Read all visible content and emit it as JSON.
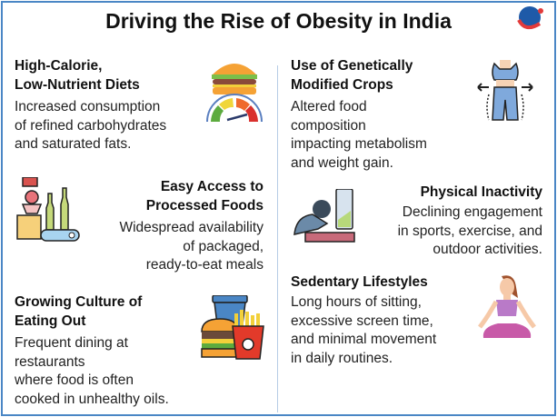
{
  "title": "Driving the Rise of Obesity in India",
  "sections": [
    {
      "heading_l1": "High-Calorie,",
      "heading_l2": "Low-Nutrient Diets",
      "body": [
        "Increased consumption",
        "of refined carbohydrates",
        "and saturated fats."
      ],
      "icon": "burger-calorie-meter-icon"
    },
    {
      "heading_l1": "Use of Genetically",
      "heading_l2": "Modified Crops",
      "body": [
        "Altered food",
        "composition",
        "impacting metabolism",
        "and weight gain."
      ],
      "icon": "waist-measure-icon"
    },
    {
      "heading_l1": "Easy Access to",
      "heading_l2": "Processed Foods",
      "body": [
        "Widespread availability",
        "of packaged,",
        "ready-to-eat meals"
      ],
      "icon": "food-factory-icon"
    },
    {
      "heading_l1": "Physical Inactivity",
      "body": [
        "Declining engagement",
        "in sports, exercise, and",
        "outdoor activities."
      ],
      "icon": "tired-person-battery-icon"
    },
    {
      "heading_l1": "Sedentary Lifestyles",
      "body": [
        "Long hours of sitting,",
        "excessive screen time,",
        "and minimal movement",
        "in daily routines."
      ],
      "icon": "meditation-icon"
    },
    {
      "heading_l1": "Growing Culture of",
      "heading_l2": "Eating Out",
      "body": [
        "Frequent dining at",
        "restaurants",
        "where food is often",
        "cooked in unhealthy oils."
      ],
      "icon": "fast-food-icon"
    }
  ]
}
